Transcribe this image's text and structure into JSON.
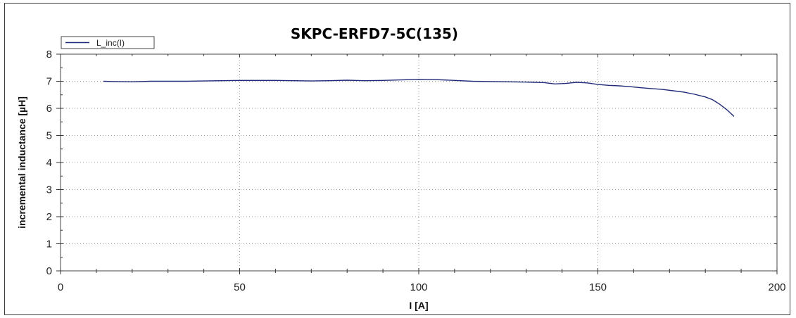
{
  "chart_data": {
    "type": "line",
    "title": "SKPC-ERFD7-5C(135)",
    "xlabel": "I [A]",
    "ylabel": "incremental inductance [µH]",
    "xlim": [
      0,
      200
    ],
    "ylim": [
      0,
      8
    ],
    "x_ticks": [
      0,
      50,
      100,
      150,
      200
    ],
    "y_ticks": [
      0,
      1,
      2,
      3,
      4,
      5,
      6,
      7,
      8
    ],
    "grid": true,
    "legend_position": "top-left",
    "series": [
      {
        "name": "L_inc(I)",
        "color": "#1f2a78",
        "x": [
          12,
          15,
          20,
          25,
          30,
          35,
          40,
          45,
          50,
          55,
          60,
          65,
          70,
          75,
          80,
          85,
          90,
          95,
          100,
          105,
          110,
          115,
          120,
          125,
          130,
          135,
          138,
          141,
          144,
          147,
          150,
          153,
          156,
          159,
          162,
          165,
          168,
          171,
          174,
          177,
          180,
          182,
          184,
          186,
          188
        ],
        "values": [
          7.0,
          6.99,
          6.98,
          7.0,
          7.0,
          7.0,
          7.01,
          7.02,
          7.03,
          7.03,
          7.03,
          7.02,
          7.01,
          7.02,
          7.04,
          7.02,
          7.03,
          7.05,
          7.07,
          7.06,
          7.03,
          7.0,
          6.99,
          6.98,
          6.97,
          6.95,
          6.9,
          6.92,
          6.96,
          6.94,
          6.88,
          6.85,
          6.83,
          6.8,
          6.76,
          6.73,
          6.7,
          6.65,
          6.6,
          6.52,
          6.42,
          6.32,
          6.15,
          5.95,
          5.7
        ]
      }
    ]
  }
}
